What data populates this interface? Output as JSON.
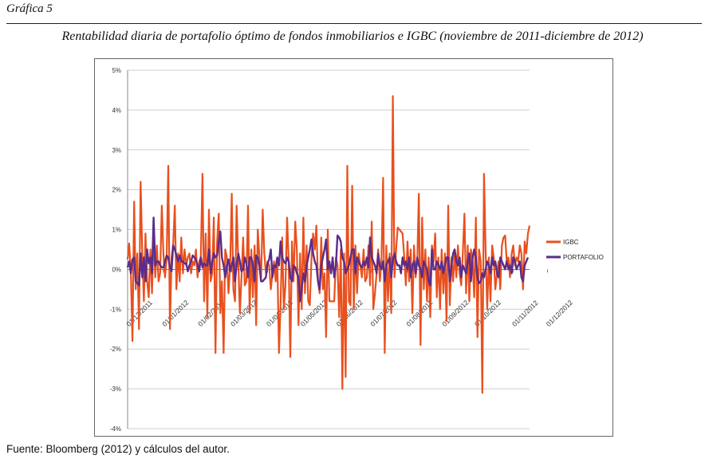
{
  "figure_label": "Gráfica 5",
  "source": "Fuente: Bloomberg (2012) y cálculos del autor.",
  "colors": {
    "igbc": "#e8501e",
    "portafolio": "#5b2c8a",
    "grid": "#cfcfcf"
  },
  "chart_data": {
    "type": "line",
    "title": "Rentabilidad diaria de portafolio óptimo de fondos inmobiliarios e IGBC (noviembre de 2011-diciembre de 2012)",
    "xlabel": "",
    "ylabel": "",
    "ylim": [
      -4,
      5
    ],
    "y_ticks": [
      "-4%",
      "-3%",
      "-2%",
      "-1%",
      "0%",
      "1%",
      "2%",
      "3%",
      "4%",
      "5%"
    ],
    "y_tick_values": [
      -4,
      -3,
      -2,
      -1,
      0,
      1,
      2,
      3,
      4,
      5
    ],
    "x_ticks": [
      "01/12/2011",
      "01/01/2012",
      "01/02/2012",
      "01/03/2012",
      "01/04/2012",
      "01/05/2012",
      "01/06/2012",
      "01/07/2012",
      "01/08/2012",
      "01/09/2012",
      "01/10/2012",
      "01/11/2012",
      "01/12/2012"
    ],
    "x_tick_index": [
      0,
      22,
      44,
      64,
      86,
      107,
      129,
      150,
      172,
      194,
      214,
      237,
      258
    ],
    "grid": true,
    "legend_position": "right",
    "series": [
      {
        "name": "IGBC",
        "values": [
          0.25,
          0.65,
          -0.1,
          -1.8,
          1.7,
          -0.5,
          0.4,
          -1.5,
          2.2,
          0.4,
          -0.8,
          0.9,
          -0.3,
          -0.7,
          0.5,
          -0.6,
          0.9,
          -0.2,
          0.6,
          -0.3,
          -0.1,
          1.6,
          0.4,
          -0.2,
          0.3,
          2.6,
          -1.5,
          0.3,
          0.6,
          1.6,
          -0.5,
          0.4,
          -0.3,
          0.8,
          -0.1,
          0.5,
          0.1,
          0.3,
          0.4,
          -0.1,
          0.2,
          0.1,
          0.5,
          -0.2,
          0.2,
          0.3,
          2.4,
          -0.8,
          0.9,
          -1.2,
          1.5,
          -0.3,
          -0.1,
          1.3,
          -2.1,
          0.7,
          1.4,
          -1.1,
          -0.3,
          -2.1,
          0.5,
          0.3,
          -0.6,
          0.1,
          1.9,
          -0.5,
          -0.8,
          1.6,
          0.2,
          -1.1,
          -0.2,
          0.8,
          -0.4,
          -0.3,
          1.6,
          -1.1,
          0.5,
          -0.7,
          0.6,
          -1.4,
          1.0,
          0.3,
          -0.3,
          1.5,
          0.4,
          -0.1,
          0.2,
          0.1,
          -0.5,
          -0.1,
          0.2,
          -0.3,
          0.3,
          -2.1,
          -0.9,
          0.8,
          -1.0,
          -0.4,
          1.3,
          0.2,
          -2.2,
          0.7,
          -0.3,
          1.2,
          0.5,
          -1.4,
          0.4,
          -1.0,
          1.3,
          -0.6,
          0.6,
          -0.8,
          -0.9,
          0.3,
          0.9,
          0.5,
          1.1,
          -0.3,
          -0.6,
          0.8,
          -0.5,
          -0.1,
          -1.7,
          1.0,
          -0.8,
          -0.8,
          -0.8,
          -0.8,
          0.3,
          0.1,
          -1.2,
          0.5,
          -3.0,
          0.4,
          -2.7,
          2.6,
          -0.8,
          -0.9,
          2.1,
          -1.0,
          0.6,
          -0.6,
          0.4,
          0.1,
          -0.2,
          0.5,
          -0.3,
          -0.2,
          0.6,
          -0.4,
          1.2,
          -1.0,
          -0.6,
          -0.1,
          0.5,
          -0.3,
          0.2,
          2.3,
          -2.1,
          0.6,
          -0.8,
          0.4,
          -1.1,
          4.35,
          -0.2,
          0.5,
          1.05,
          1.0,
          0.95,
          0.9,
          0.3,
          -0.4,
          0.7,
          -0.3,
          0.5,
          -1.1,
          0.6,
          -0.2,
          0.2,
          1.9,
          -1.9,
          1.3,
          -0.5,
          0.5,
          -0.8,
          0.3,
          -1.2,
          0.6,
          0.2,
          0.9,
          -0.7,
          0.3,
          -1.0,
          0.5,
          -0.6,
          0.4,
          -1.3,
          1.6,
          -0.9,
          0.3,
          -0.3,
          0.4,
          -0.2,
          0.6,
          -0.1,
          -0.4,
          0.4,
          1.4,
          -0.6,
          0.6,
          -0.8,
          0.5,
          0.2,
          -0.7,
          1.3,
          -1.7,
          0.5,
          0.2,
          -3.1,
          2.4,
          0.5,
          -1.0,
          0.3,
          -0.8,
          0.6,
          0.3,
          -0.5,
          -0.1,
          0.2,
          -0.5,
          0.6,
          0.8,
          0.85,
          0.2,
          0.3,
          -0.2,
          0.4,
          0.6,
          0.1,
          0.3,
          0.2,
          0.6,
          0.4,
          -0.5,
          0.7,
          0.4,
          0.9,
          1.1
        ]
      },
      {
        "name": "PORTAFOLIO",
        "values": [
          0.05,
          0.2,
          -0.1,
          0.25,
          0.3,
          -0.3,
          -0.35,
          -0.4,
          0.4,
          -0.2,
          0.3,
          -0.3,
          0.5,
          0.15,
          0.3,
          -0.1,
          1.3,
          0.1,
          0.2,
          0.2,
          0.1,
          0.05,
          0.05,
          0.2,
          0.35,
          0.3,
          0.05,
          -0.05,
          0.6,
          0.5,
          0.35,
          0.2,
          0.35,
          0.2,
          0.2,
          0.15,
          0.15,
          -0.05,
          0.1,
          0.2,
          0.35,
          0.3,
          0.25,
          0.1,
          -0.05,
          0.3,
          0.05,
          0.15,
          0.1,
          0.1,
          0.5,
          -0.1,
          0.2,
          0.4,
          0.3,
          0.35,
          0.7,
          0.95,
          0.3,
          0.1,
          -0.2,
          0.1,
          0.25,
          -0.05,
          0.1,
          0.3,
          -0.3,
          0.1,
          0.4,
          0.2,
          -0.05,
          0.0,
          0.3,
          0.15,
          -0.2,
          0.3,
          0.3,
          0.1,
          -0.3,
          0.35,
          0.3,
          0.1,
          -0.3,
          -0.3,
          -0.25,
          -0.2,
          0.15,
          0.25,
          0.5,
          -0.2,
          0.1,
          0.05,
          0.3,
          0.1,
          0.7,
          0.3,
          0.2,
          0.15,
          0.3,
          0.2,
          -0.2,
          -0.3,
          0.1,
          0.05,
          -0.1,
          -0.2,
          -0.8,
          -0.5,
          -0.1,
          -0.3,
          0.1,
          0.3,
          0.5,
          0.75,
          0.4,
          0.2,
          0.1,
          -0.3,
          -0.5,
          0.1,
          0.3,
          0.5,
          0.75,
          0.0,
          0.2,
          -0.1,
          0.3,
          -0.2,
          0.1,
          0.85,
          0.8,
          0.7,
          0.3,
          0.2,
          -0.1,
          0.0,
          0.1,
          0.3,
          0.5,
          0.5,
          -0.1,
          0.3,
          0.2,
          0.1,
          0.05,
          0.2,
          0.1,
          0.3,
          0.05,
          0.8,
          0.3,
          0.2,
          0.1,
          -0.1,
          0.4,
          0.1,
          0.0,
          0.2,
          -0.3,
          0.1,
          0.2,
          0.3,
          -0.2,
          0.25,
          0.4,
          0.2,
          0.1,
          0.1,
          -0.1,
          0.3,
          0.1,
          0.2,
          0.0,
          0.3,
          -0.2,
          0.1,
          0.2,
          -0.1,
          0.3,
          0.1,
          0.0,
          -0.2,
          0.2,
          0.1,
          0.0,
          -0.3,
          -0.4,
          0.5,
          0.0,
          0.0,
          0.2,
          0.1,
          0.0,
          0.2,
          -0.1,
          0.1,
          0.3,
          0.3,
          -0.3,
          0.1,
          0.4,
          0.5,
          0.2,
          0.1,
          0.3,
          -0.2,
          0.1,
          0.0,
          -0.1,
          0.2,
          0.4,
          -0.3,
          0.3,
          0.5,
          0.3,
          -0.2,
          -0.35,
          -0.3,
          -0.1,
          -0.2,
          0.0,
          0.2,
          0.1,
          -0.1,
          0.3,
          0.1,
          0.2,
          -0.1,
          -0.2,
          0.3,
          0.2,
          0.1,
          0.0,
          0.2,
          0.0,
          0.1,
          -0.1,
          0.3,
          0.2,
          0.0,
          0.1,
          0.2,
          -0.2,
          -0.3,
          0.1,
          0.2,
          0.3
        ]
      }
    ]
  }
}
